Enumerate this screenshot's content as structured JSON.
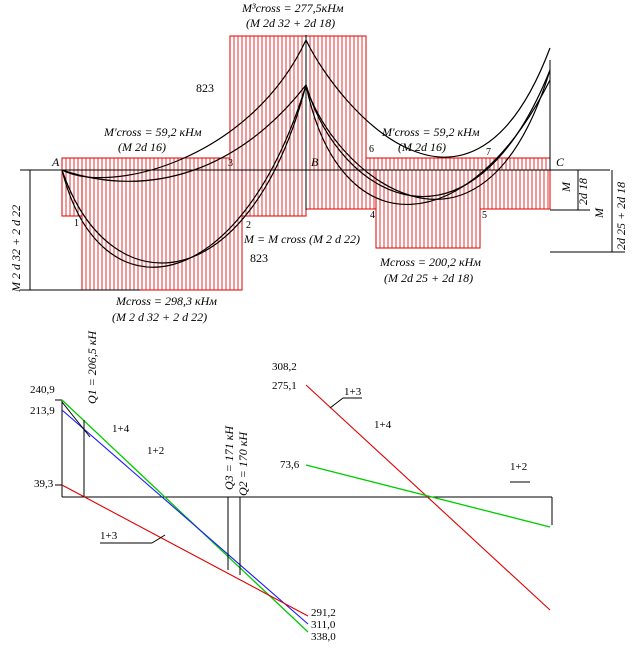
{
  "moment_diagram": {
    "top_label_line1": "M³cross = 277,5кНм",
    "top_label_line2": "(M 2d 32 + 2d 18)",
    "left_span_top_label_line1": "M'cross = 59,2 кНм",
    "left_span_top_label_line2": "(M 2d 16)",
    "right_span_top_label_line1": "M'cross = 59,2 кНм",
    "right_span_top_label_line2": "(M 2d 16)",
    "left_span_bottom_label_line1": "Mcross = 298,3 кНм",
    "left_span_bottom_label_line2": "(M 2 d 32 + 2 d 22)",
    "right_span_bottom_label_line1": "Mcross = 200,2 кНм",
    "right_span_bottom_label_line2": "(M 2d 25 + 2d 18)",
    "mid_label": "M = M cross (M 2 d 22)",
    "dim_823_top": "823",
    "dim_823_bottom": "823",
    "left_dim": "M  2 d 32 + 2 d 22",
    "right_dim_inner_m": "M",
    "right_dim_inner": "2d 18",
    "right_dim_outer_m": "M",
    "right_dim_outer": "2d 25 + 2d 18",
    "support_a": "A",
    "support_b": "B",
    "support_c": "C",
    "points": [
      "1",
      "2",
      "3",
      "4",
      "5",
      "6",
      "7"
    ]
  },
  "shear_diagram": {
    "q1_label": "Q1 = 206,5 кН",
    "q3_label": "Q3 = 171 кН",
    "q2_label": "Q2 = 170 кН",
    "left_values": [
      "240,9",
      "213,9",
      "39,3"
    ],
    "left_bottom_values": [
      "291,2",
      "311,0",
      "338,0"
    ],
    "right_values": [
      "308,2",
      "275,1",
      "73,6"
    ],
    "combo_left": [
      "1+4",
      "1+2",
      "1+3"
    ],
    "combo_right": [
      "1+3",
      "1+4",
      "1+2"
    ],
    "colors": {
      "green": "#00cc00",
      "blue": "#1a1aff",
      "red": "#e00000"
    }
  }
}
